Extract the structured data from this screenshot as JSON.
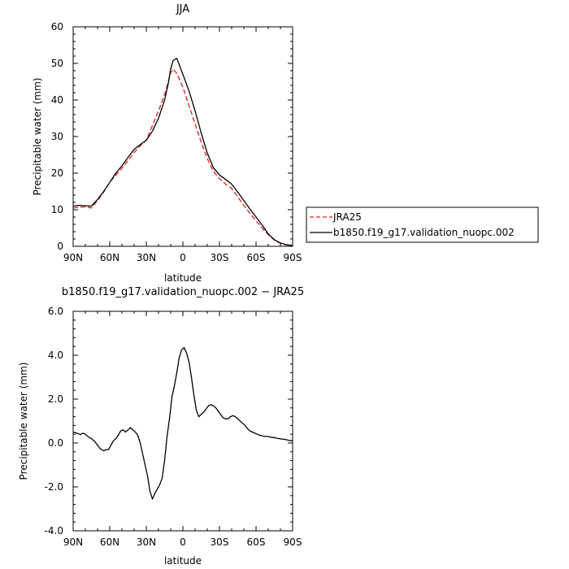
{
  "chart_data": [
    {
      "type": "line",
      "title": "JJA",
      "xlabel": "latitude",
      "ylabel": "Precipitable water (mm)",
      "xlim": [
        90,
        -90
      ],
      "ylim": [
        0,
        60
      ],
      "xticks": [
        90,
        60,
        30,
        0,
        -30,
        -60,
        -90
      ],
      "xtick_labels": [
        "90N",
        "60N",
        "30N",
        "0",
        "30S",
        "60S",
        "90S"
      ],
      "yticks": [
        0,
        10,
        20,
        30,
        40,
        50,
        60
      ],
      "ytick_labels": [
        "0",
        "10",
        "20",
        "30",
        "40",
        "50",
        "60"
      ],
      "grid": false,
      "legend_position": "outside-right",
      "series": [
        {
          "name": "JRA25",
          "color": "#e31a1c",
          "dash": "dashed",
          "x": [
            90,
            85,
            80,
            75,
            70,
            65,
            60,
            55,
            50,
            45,
            40,
            35,
            30,
            25,
            20,
            15,
            12,
            10,
            8,
            5,
            0,
            -5,
            -10,
            -15,
            -20,
            -25,
            -30,
            -35,
            -40,
            -45,
            -50,
            -55,
            -60,
            -65,
            -70,
            -75,
            -80,
            -85,
            -90
          ],
          "y": [
            10.5,
            10.7,
            10.8,
            10.5,
            12.5,
            14.8,
            17.5,
            19.5,
            21.3,
            23.4,
            25.6,
            27.5,
            29.0,
            33.0,
            37.0,
            41.5,
            45.0,
            47.5,
            48.4,
            47.3,
            43.5,
            38.5,
            33.5,
            28.5,
            24.0,
            20.5,
            18.5,
            17.0,
            15.8,
            13.5,
            11.2,
            9.0,
            7.0,
            5.0,
            3.2,
            1.7,
            0.8,
            0.4,
            0.2
          ]
        },
        {
          "name": "b1850.f19_g17.validation_nuopc.002",
          "color": "#000000",
          "dash": "solid",
          "x": [
            90,
            85,
            80,
            75,
            70,
            65,
            60,
            55,
            50,
            45,
            40,
            35,
            30,
            25,
            20,
            15,
            12,
            10,
            8,
            5,
            0,
            -5,
            -10,
            -15,
            -20,
            -25,
            -30,
            -35,
            -40,
            -45,
            -50,
            -55,
            -60,
            -65,
            -70,
            -75,
            -80,
            -85,
            -90
          ],
          "y": [
            11.0,
            11.2,
            11.1,
            11.0,
            12.8,
            15.0,
            17.5,
            20.0,
            22.0,
            24.3,
            26.5,
            27.8,
            29.0,
            31.5,
            35.0,
            40.0,
            44.5,
            48.5,
            50.8,
            51.4,
            47.0,
            42.5,
            37.0,
            31.0,
            25.5,
            21.5,
            19.5,
            18.3,
            17.0,
            14.8,
            12.5,
            10.2,
            8.0,
            5.8,
            3.4,
            1.8,
            0.9,
            0.4,
            0.2
          ]
        }
      ]
    },
    {
      "type": "line",
      "title": "b1850.f19_g17.validation_nuopc.002 − JRA25",
      "xlabel": "latitude",
      "ylabel": "Precipitable water (mm)",
      "xlim": [
        90,
        -90
      ],
      "ylim": [
        -4,
        6
      ],
      "xticks": [
        90,
        60,
        30,
        0,
        -30,
        -60,
        -90
      ],
      "xtick_labels": [
        "90N",
        "60N",
        "30N",
        "0",
        "30S",
        "60S",
        "90S"
      ],
      "yticks": [
        -4,
        -2,
        0,
        2,
        4,
        6
      ],
      "ytick_labels": [
        "-4.0",
        "-2.0",
        "0.0",
        "2.0",
        "4.0",
        "6.0"
      ],
      "grid": false,
      "series": [
        {
          "color": "#000000",
          "dash": "solid",
          "x": [
            90,
            87,
            84,
            82,
            80,
            78,
            75,
            72,
            70,
            68,
            65,
            63,
            61,
            59,
            57,
            55,
            53,
            51,
            49,
            47,
            45,
            43,
            41,
            39,
            37,
            35,
            33,
            31,
            29,
            27,
            25,
            23,
            21,
            19,
            17,
            15,
            13,
            11,
            9,
            7,
            5,
            3,
            1,
            -1,
            -3,
            -5,
            -7,
            -9,
            -11,
            -13,
            -15,
            -17,
            -19,
            -21,
            -23,
            -25,
            -27,
            -29,
            -31,
            -33,
            -35,
            -37,
            -39,
            -41,
            -43,
            -45,
            -47,
            -49,
            -51,
            -53,
            -55,
            -57,
            -59,
            -61,
            -63,
            -65,
            -67,
            -69,
            -71,
            -73,
            -75,
            -77,
            -79,
            -81,
            -83,
            -85,
            -87,
            -90
          ],
          "y": [
            0.5,
            0.45,
            0.38,
            0.45,
            0.4,
            0.3,
            0.2,
            0.05,
            -0.1,
            -0.25,
            -0.35,
            -0.3,
            -0.3,
            -0.1,
            0.1,
            0.2,
            0.35,
            0.55,
            0.6,
            0.5,
            0.6,
            0.7,
            0.6,
            0.5,
            0.35,
            0.0,
            -0.5,
            -1.0,
            -1.5,
            -2.2,
            -2.55,
            -2.3,
            -2.1,
            -1.9,
            -1.6,
            -0.8,
            0.3,
            1.1,
            2.1,
            2.6,
            3.2,
            3.9,
            4.25,
            4.35,
            4.1,
            3.7,
            3.0,
            2.2,
            1.5,
            1.2,
            1.3,
            1.4,
            1.55,
            1.7,
            1.75,
            1.7,
            1.6,
            1.45,
            1.3,
            1.15,
            1.1,
            1.1,
            1.2,
            1.25,
            1.2,
            1.1,
            1.0,
            0.9,
            0.8,
            0.65,
            0.55,
            0.5,
            0.45,
            0.4,
            0.35,
            0.33,
            0.3,
            0.3,
            0.28,
            0.25,
            0.25,
            0.22,
            0.2,
            0.18,
            0.17,
            0.15,
            0.12,
            0.1
          ]
        }
      ]
    }
  ]
}
